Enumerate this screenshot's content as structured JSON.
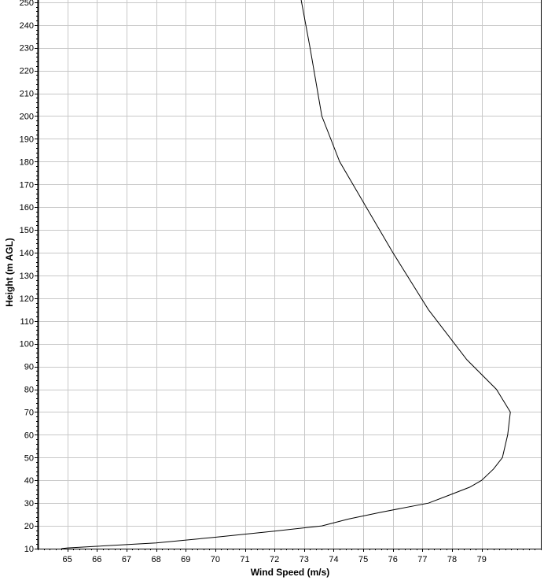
{
  "chart_data": {
    "type": "line",
    "title": "",
    "xlabel": "Wind Speed (m/s)",
    "ylabel": "Height (m AGL)",
    "xlim": [
      64.0,
      81.0
    ],
    "ylim": [
      10,
      251
    ],
    "grid": true,
    "x_ticks": [
      65,
      66,
      67,
      68,
      69,
      70,
      71,
      72,
      73,
      74,
      75,
      76,
      77,
      78,
      79
    ],
    "y_ticks": [
      10,
      20,
      30,
      40,
      50,
      60,
      70,
      80,
      90,
      100,
      110,
      120,
      130,
      140,
      150,
      160,
      170,
      180,
      190,
      200,
      210,
      220,
      230,
      240,
      250
    ],
    "y_tick_labels": [
      "10",
      "20",
      "30",
      "40",
      "50",
      "60",
      "70",
      "80",
      "90",
      "100",
      "110",
      "120",
      "130",
      "140",
      "150",
      "160",
      "170",
      "180",
      "190",
      "200",
      "210",
      "220",
      "230",
      "240",
      "250"
    ],
    "series": [
      {
        "color": "#000000",
        "x": [
          64.8,
          65.0,
          68.0,
          70.0,
          72.0,
          73.6,
          74.5,
          75.6,
          77.2,
          78.0,
          78.6,
          79.0,
          79.4,
          79.7,
          79.88,
          79.97,
          79.5,
          78.5,
          77.2,
          76.0,
          75.1,
          74.2,
          73.6,
          73.4,
          73.2,
          72.9
        ],
        "y": [
          10,
          10.3,
          12.5,
          15,
          17.7,
          20,
          23,
          26,
          30,
          34,
          37,
          40,
          45,
          50,
          60,
          70,
          80,
          93,
          115,
          140,
          160,
          180,
          200,
          215,
          230,
          251
        ]
      }
    ]
  }
}
